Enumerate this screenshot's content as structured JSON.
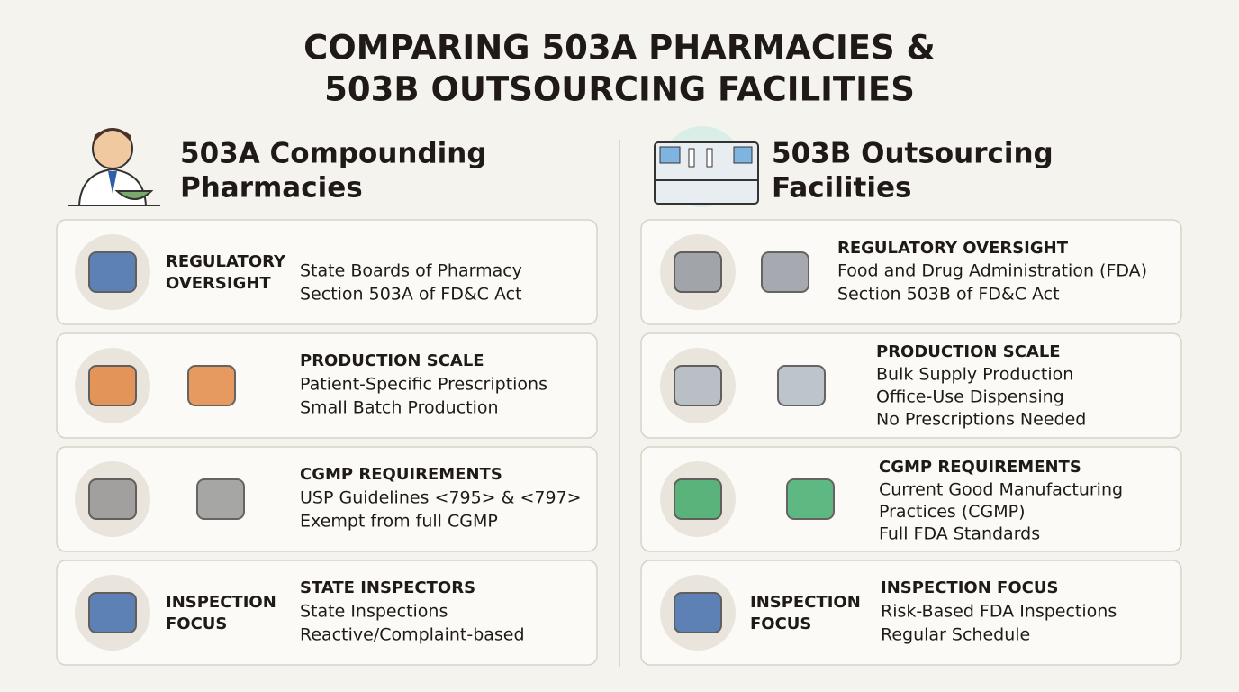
{
  "title": [
    "COMPARING 503A PHARMACIES &",
    "503B OUTSOURCING FACILITIES"
  ],
  "columns": [
    {
      "heading": [
        "503A Compounding",
        "Pharmacies"
      ],
      "cards": [
        {
          "label": [
            "REGULATORY",
            "OVERSIGHT"
          ],
          "lines": [
            "State Boards of Pharmacy",
            "Section 503A of FD&C Act"
          ]
        },
        {
          "heading": "PRODUCTION SCALE",
          "lines": [
            "Patient-Specific Prescriptions",
            "Small Batch Production"
          ]
        },
        {
          "heading": "CGMP REQUIREMENTS",
          "lines": [
            "USP Guidelines <795> & <797>",
            "Exempt from full CGMP"
          ]
        },
        {
          "label": [
            "INSPECTION",
            "FOCUS"
          ],
          "heading": "STATE INSPECTORS",
          "lines": [
            "State Inspections",
            "Reactive/Complaint-based"
          ]
        }
      ]
    },
    {
      "heading": [
        "503B Outsourcing",
        "Facilities"
      ],
      "cards": [
        {
          "heading": "REGULATORY OVERSIGHT",
          "lines": [
            "Food and Drug Administration (FDA)",
            "Section 503B of FD&C Act"
          ]
        },
        {
          "heading": "PRODUCTION SCALE",
          "lines": [
            "Bulk Supply Production",
            "Office-Use Dispensing",
            "No Prescriptions Needed"
          ]
        },
        {
          "heading": "CGMP REQUIREMENTS",
          "lines": [
            "Current Good Manufacturing",
            "Practices (CGMP)",
            "Full FDA Standards"
          ]
        },
        {
          "label": [
            "INSPECTION",
            "FOCUS"
          ],
          "heading": "INSPECTION FOCUS",
          "lines": [
            "Risk-Based FDA Inspections",
            "Regular Schedule"
          ]
        }
      ]
    }
  ]
}
